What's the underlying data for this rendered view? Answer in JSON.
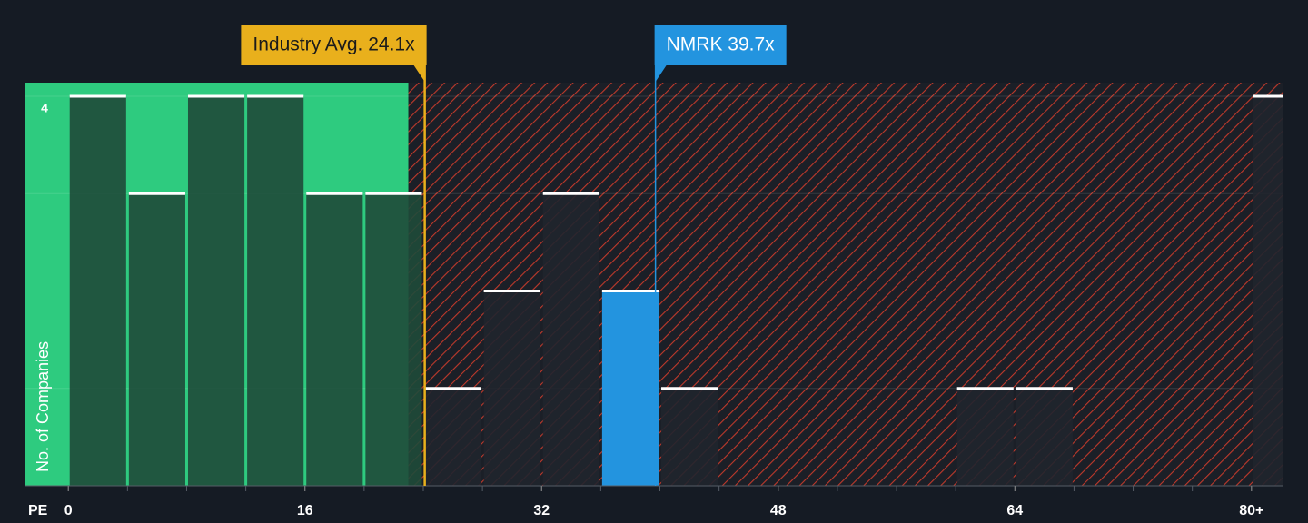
{
  "chart_data": {
    "type": "histogram",
    "x_label": "PE",
    "y_label": "No. of Companies",
    "bins": [
      0,
      4,
      8,
      12,
      16,
      20,
      24,
      28,
      32,
      36,
      40,
      44,
      48,
      52,
      56,
      60,
      64,
      68,
      72,
      76,
      80,
      84
    ],
    "values": [
      4,
      3,
      4,
      4,
      3,
      3,
      1,
      2,
      3,
      2,
      1,
      0,
      0,
      0,
      0,
      1,
      1,
      0,
      0,
      0,
      4
    ],
    "highlight_index": 9,
    "colors": {
      "below": "#1f4a3a",
      "above": "#20252d",
      "highlight": "#2394df",
      "below_zone": "#2ecb7f",
      "hatch": "#c0392b"
    },
    "xlim": [
      -2.9,
      82.1
    ],
    "ylim": [
      0,
      4.14
    ],
    "xticks": [
      0,
      16,
      32,
      48,
      64,
      {
        "value": 80,
        "label": "80+"
      }
    ],
    "yticks": [
      4
    ],
    "grid_values": [
      1,
      2,
      3,
      4
    ],
    "annotations": [
      {
        "label": "Industry Avg. 24.1x",
        "value": 24.1,
        "color": "#e9b01c"
      },
      {
        "label": "NMRK 39.7x",
        "value": 39.7,
        "color": "#2394df"
      }
    ]
  }
}
